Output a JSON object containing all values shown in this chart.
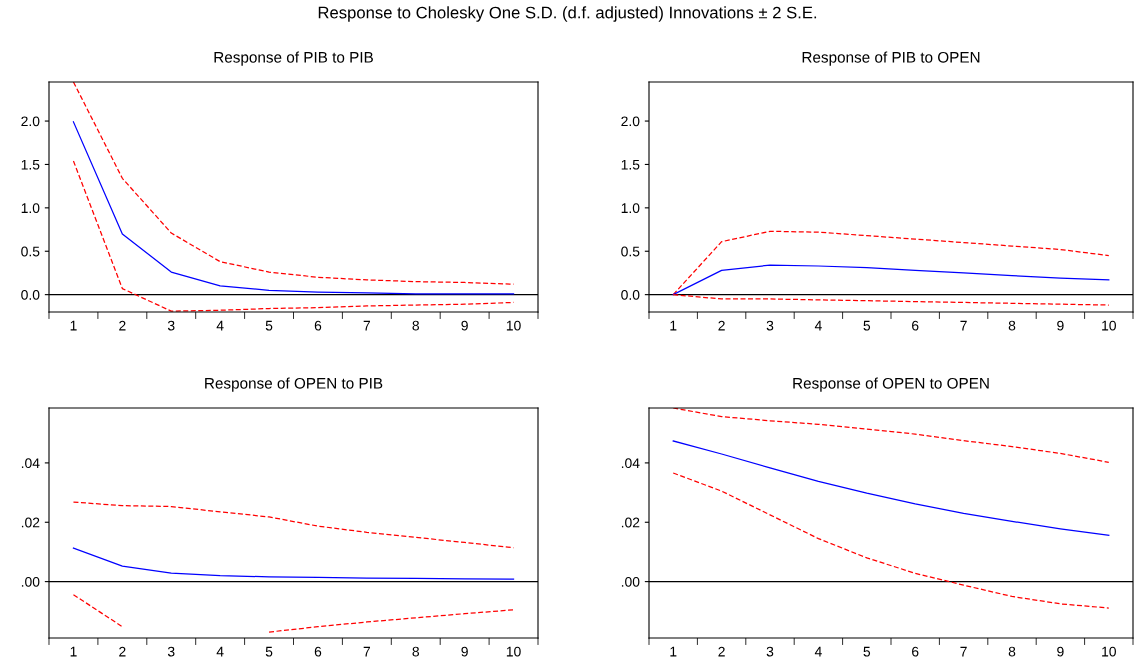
{
  "chart_data": [
    {
      "type": "line",
      "title": "Response of PIB to PIB",
      "annotations": [
        "Response to Cholesky One S.D. (d.f. adjusted) Innovations ± 2 S.E."
      ],
      "categories": [
        "1",
        "2",
        "3",
        "4",
        "5",
        "6",
        "7",
        "8",
        "9",
        "10"
      ],
      "ylim": [
        -0.2,
        2.45
      ],
      "yticks": [
        {
          "value": 0,
          "label": "0.0"
        },
        {
          "value": 0.5,
          "label": "0.5"
        },
        {
          "value": 1,
          "label": "1.0"
        },
        {
          "value": 1.5,
          "label": "1.5"
        },
        {
          "value": 2,
          "label": "2.0"
        }
      ],
      "ref_lines": [
        {
          "axis": "y",
          "value": 0,
          "color": "#000000"
        }
      ],
      "grid": false,
      "legend": false,
      "series": [
        {
          "color": "#ff0000",
          "line_style": "dashed",
          "values": [
            2.45,
            1.34,
            0.71,
            0.38,
            0.26,
            0.2,
            0.17,
            0.15,
            0.14,
            0.12
          ]
        },
        {
          "color": "#0000ff",
          "line_style": "solid",
          "values": [
            1.99,
            0.7,
            0.26,
            0.1,
            0.05,
            0.03,
            0.02,
            0.01,
            0.01,
            0.01
          ]
        },
        {
          "color": "#ff0000",
          "line_style": "dashed",
          "values": [
            1.54,
            0.07,
            -0.19,
            -0.18,
            -0.16,
            -0.15,
            -0.13,
            -0.12,
            -0.11,
            -0.09
          ]
        }
      ]
    },
    {
      "type": "line",
      "title": "Response of PIB to OPEN",
      "categories": [
        "1",
        "2",
        "3",
        "4",
        "5",
        "6",
        "7",
        "8",
        "9",
        "10"
      ],
      "ylim": [
        -0.2,
        2.45
      ],
      "yticks": [
        {
          "value": 0,
          "label": "0.0"
        },
        {
          "value": 0.5,
          "label": "0.5"
        },
        {
          "value": 1,
          "label": "1.0"
        },
        {
          "value": 1.5,
          "label": "1.5"
        },
        {
          "value": 2,
          "label": "2.0"
        }
      ],
      "ref_lines": [
        {
          "axis": "y",
          "value": 0,
          "color": "#000000"
        }
      ],
      "grid": false,
      "legend": false,
      "series": [
        {
          "color": "#ff0000",
          "line_style": "dashed",
          "values": [
            0,
            0.61,
            0.73,
            0.72,
            0.68,
            0.64,
            0.6,
            0.56,
            0.52,
            0.45
          ]
        },
        {
          "color": "#0000ff",
          "line_style": "solid",
          "values": [
            0,
            0.28,
            0.34,
            0.33,
            0.31,
            0.28,
            0.25,
            0.22,
            0.19,
            0.17
          ]
        },
        {
          "color": "#ff0000",
          "line_style": "dashed",
          "values": [
            0,
            -0.05,
            -0.05,
            -0.06,
            -0.07,
            -0.08,
            -0.09,
            -0.1,
            -0.11,
            -0.12
          ]
        }
      ]
    },
    {
      "type": "line",
      "title": "Response of OPEN to PIB",
      "categories": [
        "1",
        "2",
        "3",
        "4",
        "5",
        "6",
        "7",
        "8",
        "9",
        "10"
      ],
      "ylim": [
        -0.019,
        0.0585
      ],
      "yticks": [
        {
          "value": 0,
          "label": ".00"
        },
        {
          "value": 0.02,
          "label": ".02"
        },
        {
          "value": 0.04,
          "label": ".04"
        }
      ],
      "ref_lines": [
        {
          "axis": "y",
          "value": 0,
          "color": "#000000"
        }
      ],
      "grid": false,
      "legend": false,
      "series": [
        {
          "color": "#ff0000",
          "line_style": "dashed",
          "values": [
            0.0268,
            0.0256,
            0.0253,
            0.0235,
            0.0218,
            0.0187,
            0.0166,
            0.0149,
            0.0132,
            0.0114
          ]
        },
        {
          "color": "#0000ff",
          "line_style": "solid",
          "values": [
            0.0113,
            0.0052,
            0.0029,
            0.002,
            0.0016,
            0.0014,
            0.0012,
            0.0011,
            0.0009,
            0.0008
          ]
        },
        {
          "color": "#ff0000",
          "line_style": "dashed",
          "values": [
            -0.0044,
            -0.0152,
            null,
            null,
            -0.017,
            -0.0152,
            -0.0136,
            -0.0122,
            -0.0108,
            -0.0095
          ]
        }
      ]
    },
    {
      "type": "line",
      "title": "Response of OPEN to OPEN",
      "categories": [
        "1",
        "2",
        "3",
        "4",
        "5",
        "6",
        "7",
        "8",
        "9",
        "10"
      ],
      "ylim": [
        -0.019,
        0.0585
      ],
      "yticks": [
        {
          "value": 0,
          "label": ".00"
        },
        {
          "value": 0.02,
          "label": ".02"
        },
        {
          "value": 0.04,
          "label": ".04"
        }
      ],
      "ref_lines": [
        {
          "axis": "y",
          "value": 0,
          "color": "#000000"
        }
      ],
      "grid": false,
      "legend": false,
      "series": [
        {
          "color": "#ff0000",
          "line_style": "dashed",
          "values": [
            0.0585,
            0.0556,
            0.0542,
            0.053,
            0.0514,
            0.0497,
            0.0475,
            0.0455,
            0.0432,
            0.0402
          ]
        },
        {
          "color": "#0000ff",
          "line_style": "solid",
          "values": [
            0.0474,
            0.043,
            0.0383,
            0.0338,
            0.0298,
            0.0262,
            0.023,
            0.0203,
            0.0178,
            0.0156
          ]
        },
        {
          "color": "#ff0000",
          "line_style": "dashed",
          "values": [
            0.0366,
            0.0305,
            0.0225,
            0.0145,
            0.008,
            0.0028,
            -0.0012,
            -0.005,
            -0.0075,
            -0.0089
          ]
        }
      ]
    }
  ]
}
